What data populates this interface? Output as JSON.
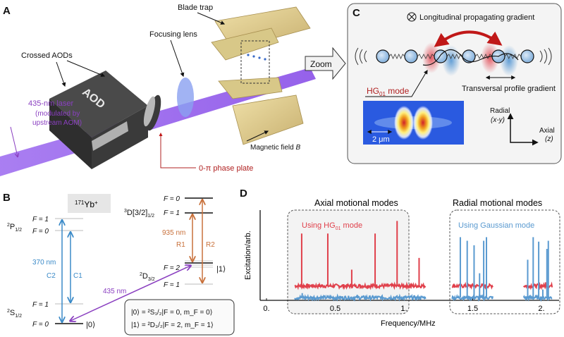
{
  "panel_a": {
    "label": "A",
    "blade_trap": "Blade trap",
    "focusing_lens": "Focusing lens",
    "crossed_aods": "Crossed AODs",
    "aod": "AOD",
    "laser_line1": "435-nm laser",
    "laser_line2": "(modulated by",
    "laser_line3": "upstream AOM)",
    "magnetic_field": "Magnetic field ",
    "magnetic_field_symbol": "B",
    "phase_plate": "0-π phase plate",
    "zoom": "Zoom"
  },
  "panel_b": {
    "label": "B",
    "isotope_mass": "171",
    "isotope": "Yb",
    "isotope_charge": "+",
    "p_level": {
      "sup": "2",
      "main": "P",
      "sub": "1/2"
    },
    "s_level": {
      "sup": "2",
      "main": "S",
      "sub": "1/2"
    },
    "d_level": {
      "sup": "2",
      "main": "D",
      "sub": "3/2"
    },
    "d32_level": {
      "sup": "3",
      "main": "D[3/2]",
      "sub": "1/2"
    },
    "f1": "F = 1",
    "f0": "F = 0",
    "f2": "F = 2",
    "wl_370": "370 nm",
    "c1": "C1",
    "c2": "C2",
    "wl_935": "935 nm",
    "r1": "R1",
    "r2": "R2",
    "wl_435": "435 nm",
    "ket0": "|0⟩",
    "ket1": "|1⟩",
    "def0": "|0⟩ = ²S₁/₂|F = 0, m_F = 0⟩",
    "def1": "|1⟩ = ²D₃/₂|F = 2, m_F = 1⟩"
  },
  "panel_c": {
    "label": "C",
    "longitudinal": "Longitudinal propagating gradient",
    "transversal": "Transversal profile gradient",
    "hg_mode": "HG",
    "hg_sub": "01",
    "hg_suffix": " mode",
    "scale": "2 μm",
    "radial": "Radial",
    "radial_sub": "(x-y)",
    "axial": "Axial",
    "axial_sub": "(z)"
  },
  "colors": {
    "red": "#e0404b",
    "blue": "#5a9ad0",
    "purple": "#8a3fc0",
    "orange": "#c8703a",
    "darkred": "#b02020"
  },
  "chart_data": {
    "type": "line",
    "title_axial": "Axial motional modes",
    "title_radial": "Radial motional modes",
    "label": "D",
    "xlabel": "Frequency/MHz",
    "ylabel": "Excitation/arb.",
    "xlim": [
      0,
      2.1
    ],
    "ylim": [
      0,
      1
    ],
    "x_ticks": [
      {
        "v": 0,
        "t": "0."
      },
      {
        "v": 0.5,
        "t": "0.5"
      },
      {
        "v": 1,
        "t": "1."
      },
      {
        "v": 1.5,
        "t": "1.5"
      },
      {
        "v": 2,
        "t": "2."
      }
    ],
    "legend_hg": "Using HG",
    "legend_hg_sub": "01",
    "legend_hg_suffix": " mode",
    "legend_gauss": "Using Gaussian mode",
    "series": [
      {
        "name": "HG01 mode",
        "color": "#e0404b",
        "baseline": 0.16,
        "ranges": [
          [
            0.205,
            1.16
          ],
          [
            1.35,
            1.65
          ],
          [
            1.87,
            2.08
          ]
        ],
        "peaks": [
          {
            "f": 0.256,
            "a": 0.74
          },
          {
            "f": 0.446,
            "a": 0.74
          },
          {
            "f": 0.62,
            "a": 0.34
          },
          {
            "f": 0.79,
            "a": 0.74
          },
          {
            "f": 0.95,
            "a": 0.88
          },
          {
            "f": 1.11,
            "a": 0.47
          },
          {
            "f": 1.51,
            "a": 0.22
          },
          {
            "f": 2.03,
            "a": 0.2
          }
        ]
      },
      {
        "name": "Gaussian mode",
        "color": "#5a9ad0",
        "baseline": 0.03,
        "ranges": [
          [
            0.205,
            1.16
          ],
          [
            1.35,
            1.65
          ],
          [
            1.87,
            2.08
          ]
        ],
        "peaks": [
          {
            "f": 0.26,
            "a": 0.08
          },
          {
            "f": 1.41,
            "a": 0.7
          },
          {
            "f": 1.46,
            "a": 0.66
          },
          {
            "f": 1.51,
            "a": 0.61
          },
          {
            "f": 1.55,
            "a": 0.3
          },
          {
            "f": 1.58,
            "a": 0.66
          },
          {
            "f": 1.6,
            "a": 0.7
          },
          {
            "f": 1.9,
            "a": 0.45
          },
          {
            "f": 1.94,
            "a": 0.7
          },
          {
            "f": 1.98,
            "a": 0.65
          },
          {
            "f": 2.01,
            "a": 0.12
          },
          {
            "f": 2.04,
            "a": 0.57
          },
          {
            "f": 2.05,
            "a": 0.66
          }
        ]
      }
    ]
  }
}
